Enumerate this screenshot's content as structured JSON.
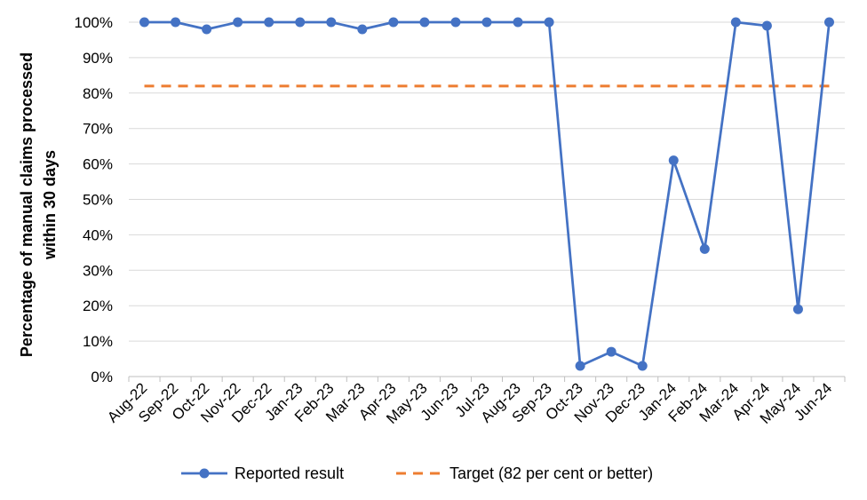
{
  "chart_data": {
    "type": "line",
    "title": "",
    "xlabel": "",
    "ylabel_lines": [
      "Percentage of manual claims processed",
      "within 30 days"
    ],
    "categories": [
      "Aug-22",
      "Sep-22",
      "Oct-22",
      "Nov-22",
      "Dec-22",
      "Jan-23",
      "Feb-23",
      "Mar-23",
      "Apr-23",
      "May-23",
      "Jun-23",
      "Jul-23",
      "Aug-23",
      "Sep-23",
      "Oct-23",
      "Nov-23",
      "Dec-23",
      "Jan-24",
      "Feb-24",
      "Mar-24",
      "Apr-24",
      "May-24",
      "Jun-24"
    ],
    "ylim": [
      0,
      100
    ],
    "y_ticks": [
      0,
      10,
      20,
      30,
      40,
      50,
      60,
      70,
      80,
      90,
      100
    ],
    "y_tick_suffix": "%",
    "grid": "horizontal",
    "legend_position": "bottom",
    "series": [
      {
        "name": "Reported result",
        "style": "solid-markers",
        "color": "#4472C4",
        "values": [
          100,
          100,
          98,
          100,
          100,
          100,
          100,
          98,
          100,
          100,
          100,
          100,
          100,
          100,
          3,
          7,
          3,
          61,
          36,
          100,
          99,
          19,
          100
        ]
      },
      {
        "name": "Target (82 per cent or better)",
        "style": "dashed",
        "color": "#ED7D31",
        "values": [
          82,
          82,
          82,
          82,
          82,
          82,
          82,
          82,
          82,
          82,
          82,
          82,
          82,
          82,
          82,
          82,
          82,
          82,
          82,
          82,
          82,
          82,
          82
        ]
      }
    ]
  },
  "colors": {
    "grid": "#D9D9D9",
    "axis": "#BFBFBF"
  }
}
